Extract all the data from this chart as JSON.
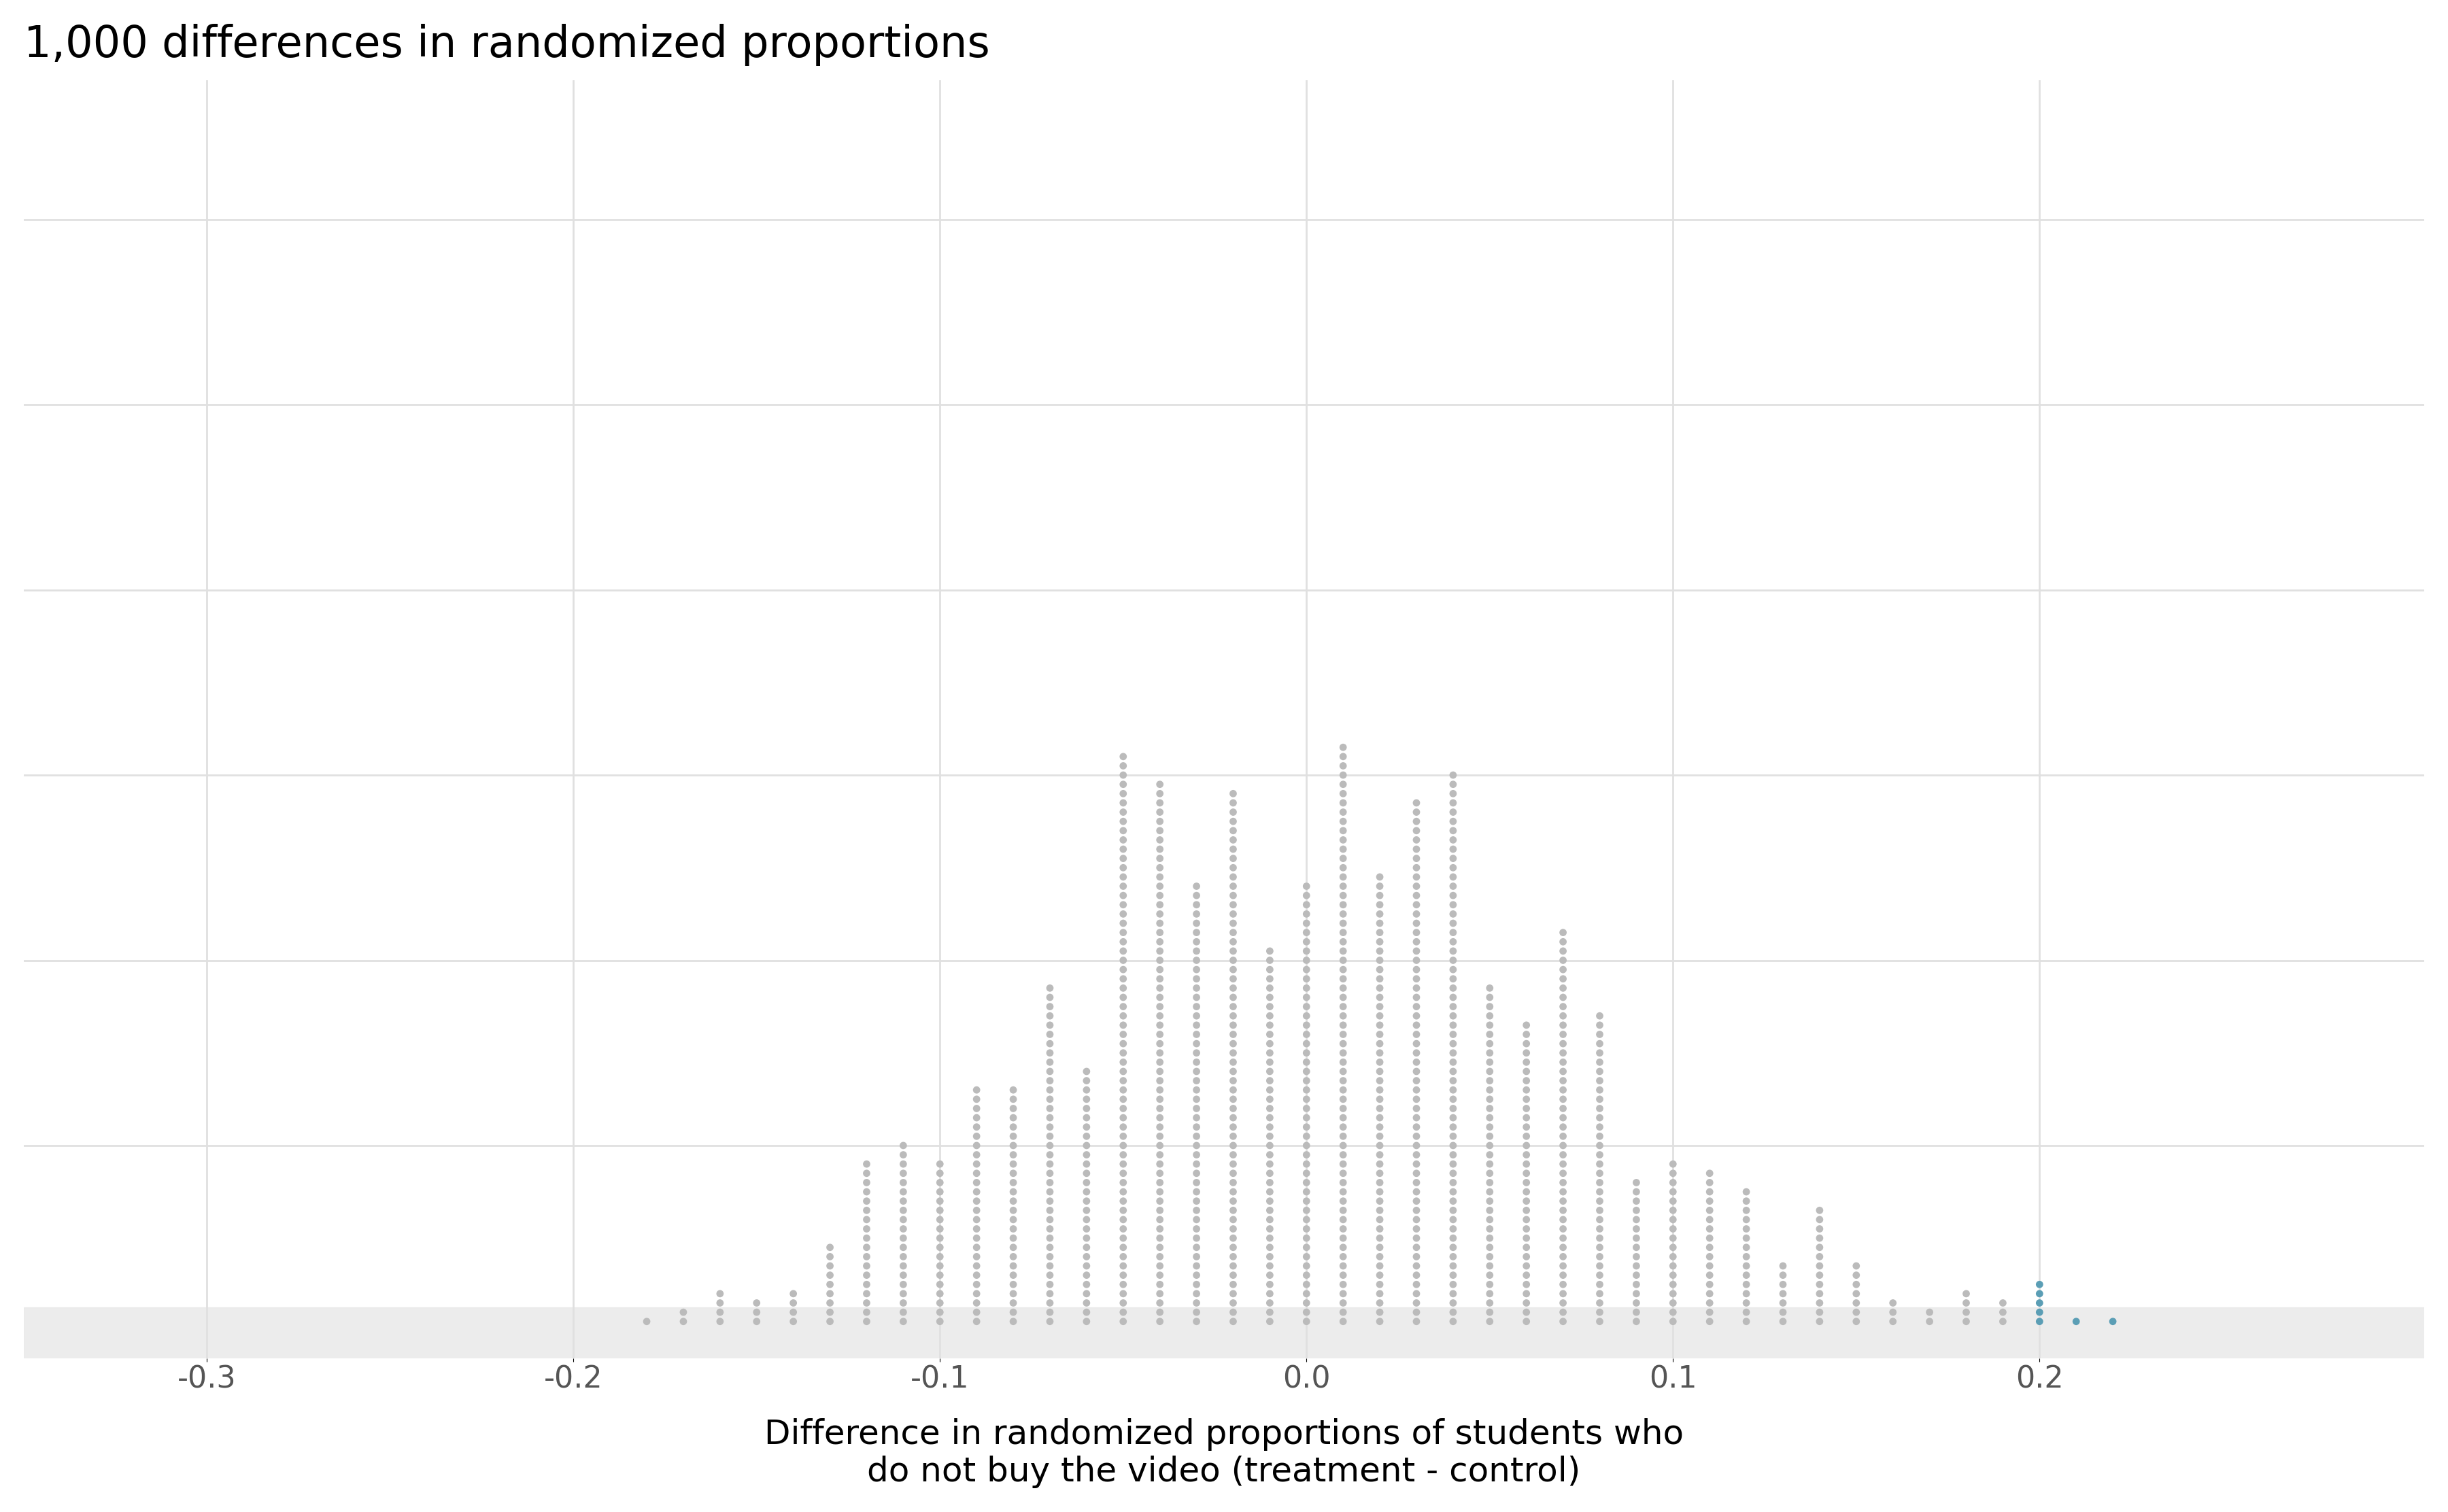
{
  "title": "1,000 differences in randomized proportions",
  "xlabel_line1": "Difference in randomized proportions of students who",
  "xlabel_line2": "do not buy the video (treatment - control)",
  "xlim": [
    -0.35,
    0.305
  ],
  "ylim": [
    -3,
    135
  ],
  "xticks": [
    -0.3,
    -0.2,
    -0.1,
    0.0,
    0.1,
    0.2
  ],
  "xtick_labels": [
    "-0.3",
    "-0.2",
    "-0.1",
    "0.0",
    "0.1",
    "0.2"
  ],
  "dot_color_null": "#bbbbbb",
  "dot_color_observed": "#5b9eb5",
  "observed_threshold": 0.2,
  "n_simulations": 1000,
  "n_observed": 6,
  "bin_width": 0.01,
  "background_color": "#ffffff",
  "grid_color": "#e0e0e0",
  "base_band_color": "#e8e8e8",
  "title_fontsize": 46,
  "xlabel_fontsize": 36,
  "tick_fontsize": 32,
  "std": 0.07
}
